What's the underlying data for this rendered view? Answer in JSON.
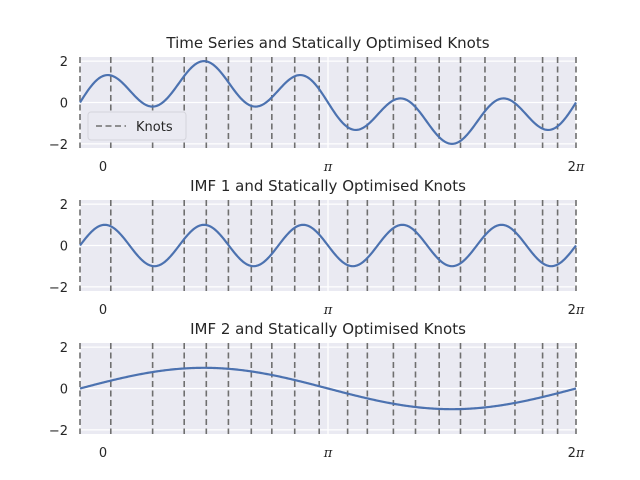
{
  "figure": {
    "background": "#ffffff",
    "axes_facecolor": "#eaeaf2",
    "grid_color": "#ffffff",
    "line_color": "#4c72b0",
    "knot_color": "#6f6f6f"
  },
  "chart_data": [
    {
      "type": "line",
      "title": "Time Series and Statically Optimised Knots",
      "xlim": [
        0,
        6.2832
      ],
      "ylim": [
        -2.2,
        2.2
      ],
      "x_ticks": [
        0,
        3.1416,
        6.2832
      ],
      "x_tick_labels": [
        "0",
        "π",
        "2π"
      ],
      "y_ticks": [
        2,
        0,
        -2
      ],
      "y_tick_labels": [
        "2",
        "0",
        "−2"
      ],
      "grid": true,
      "series": [
        {
          "formula": "sin(5t) + sin(t)",
          "samples": 400
        }
      ],
      "knots": [
        0,
        0.39,
        0.92,
        1.32,
        1.6,
        1.88,
        2.17,
        2.43,
        2.72,
        3.03,
        3.39,
        3.64,
        3.97,
        4.25,
        4.55,
        4.82,
        5.13,
        5.51,
        5.86,
        6.05,
        6.2832
      ],
      "legend": {
        "labels": [
          "Knots"
        ],
        "placement": "lower-left"
      }
    },
    {
      "type": "line",
      "title": "IMF 1 and Statically Optimised Knots",
      "xlim": [
        0,
        6.2832
      ],
      "ylim": [
        -2.2,
        2.2
      ],
      "x_ticks": [
        0,
        3.1416,
        6.2832
      ],
      "x_tick_labels": [
        "0",
        "π",
        "2π"
      ],
      "y_ticks": [
        2,
        0,
        -2
      ],
      "y_tick_labels": [
        "2",
        "0",
        "−2"
      ],
      "grid": true,
      "series": [
        {
          "formula": "sin(5t)",
          "samples": 400
        }
      ],
      "knots": [
        0,
        0.39,
        0.92,
        1.32,
        1.6,
        1.88,
        2.17,
        2.43,
        2.72,
        3.03,
        3.39,
        3.64,
        3.97,
        4.25,
        4.55,
        4.82,
        5.13,
        5.51,
        5.86,
        6.05,
        6.2832
      ]
    },
    {
      "type": "line",
      "title": "IMF 2 and Statically Optimised Knots",
      "xlim": [
        0,
        6.2832
      ],
      "ylim": [
        -2.2,
        2.2
      ],
      "x_ticks": [
        0,
        3.1416,
        6.2832
      ],
      "x_tick_labels": [
        "0",
        "π",
        "2π"
      ],
      "y_ticks": [
        2,
        0,
        -2
      ],
      "y_tick_labels": [
        "2",
        "0",
        "−2"
      ],
      "grid": true,
      "series": [
        {
          "formula": "sin(t)",
          "samples": 400
        }
      ],
      "knots": [
        0,
        0.39,
        0.92,
        1.32,
        1.6,
        1.88,
        2.17,
        2.43,
        2.72,
        3.03,
        3.39,
        3.64,
        3.97,
        4.25,
        4.55,
        4.82,
        5.13,
        5.51,
        5.86,
        6.05,
        6.2832
      ]
    }
  ]
}
